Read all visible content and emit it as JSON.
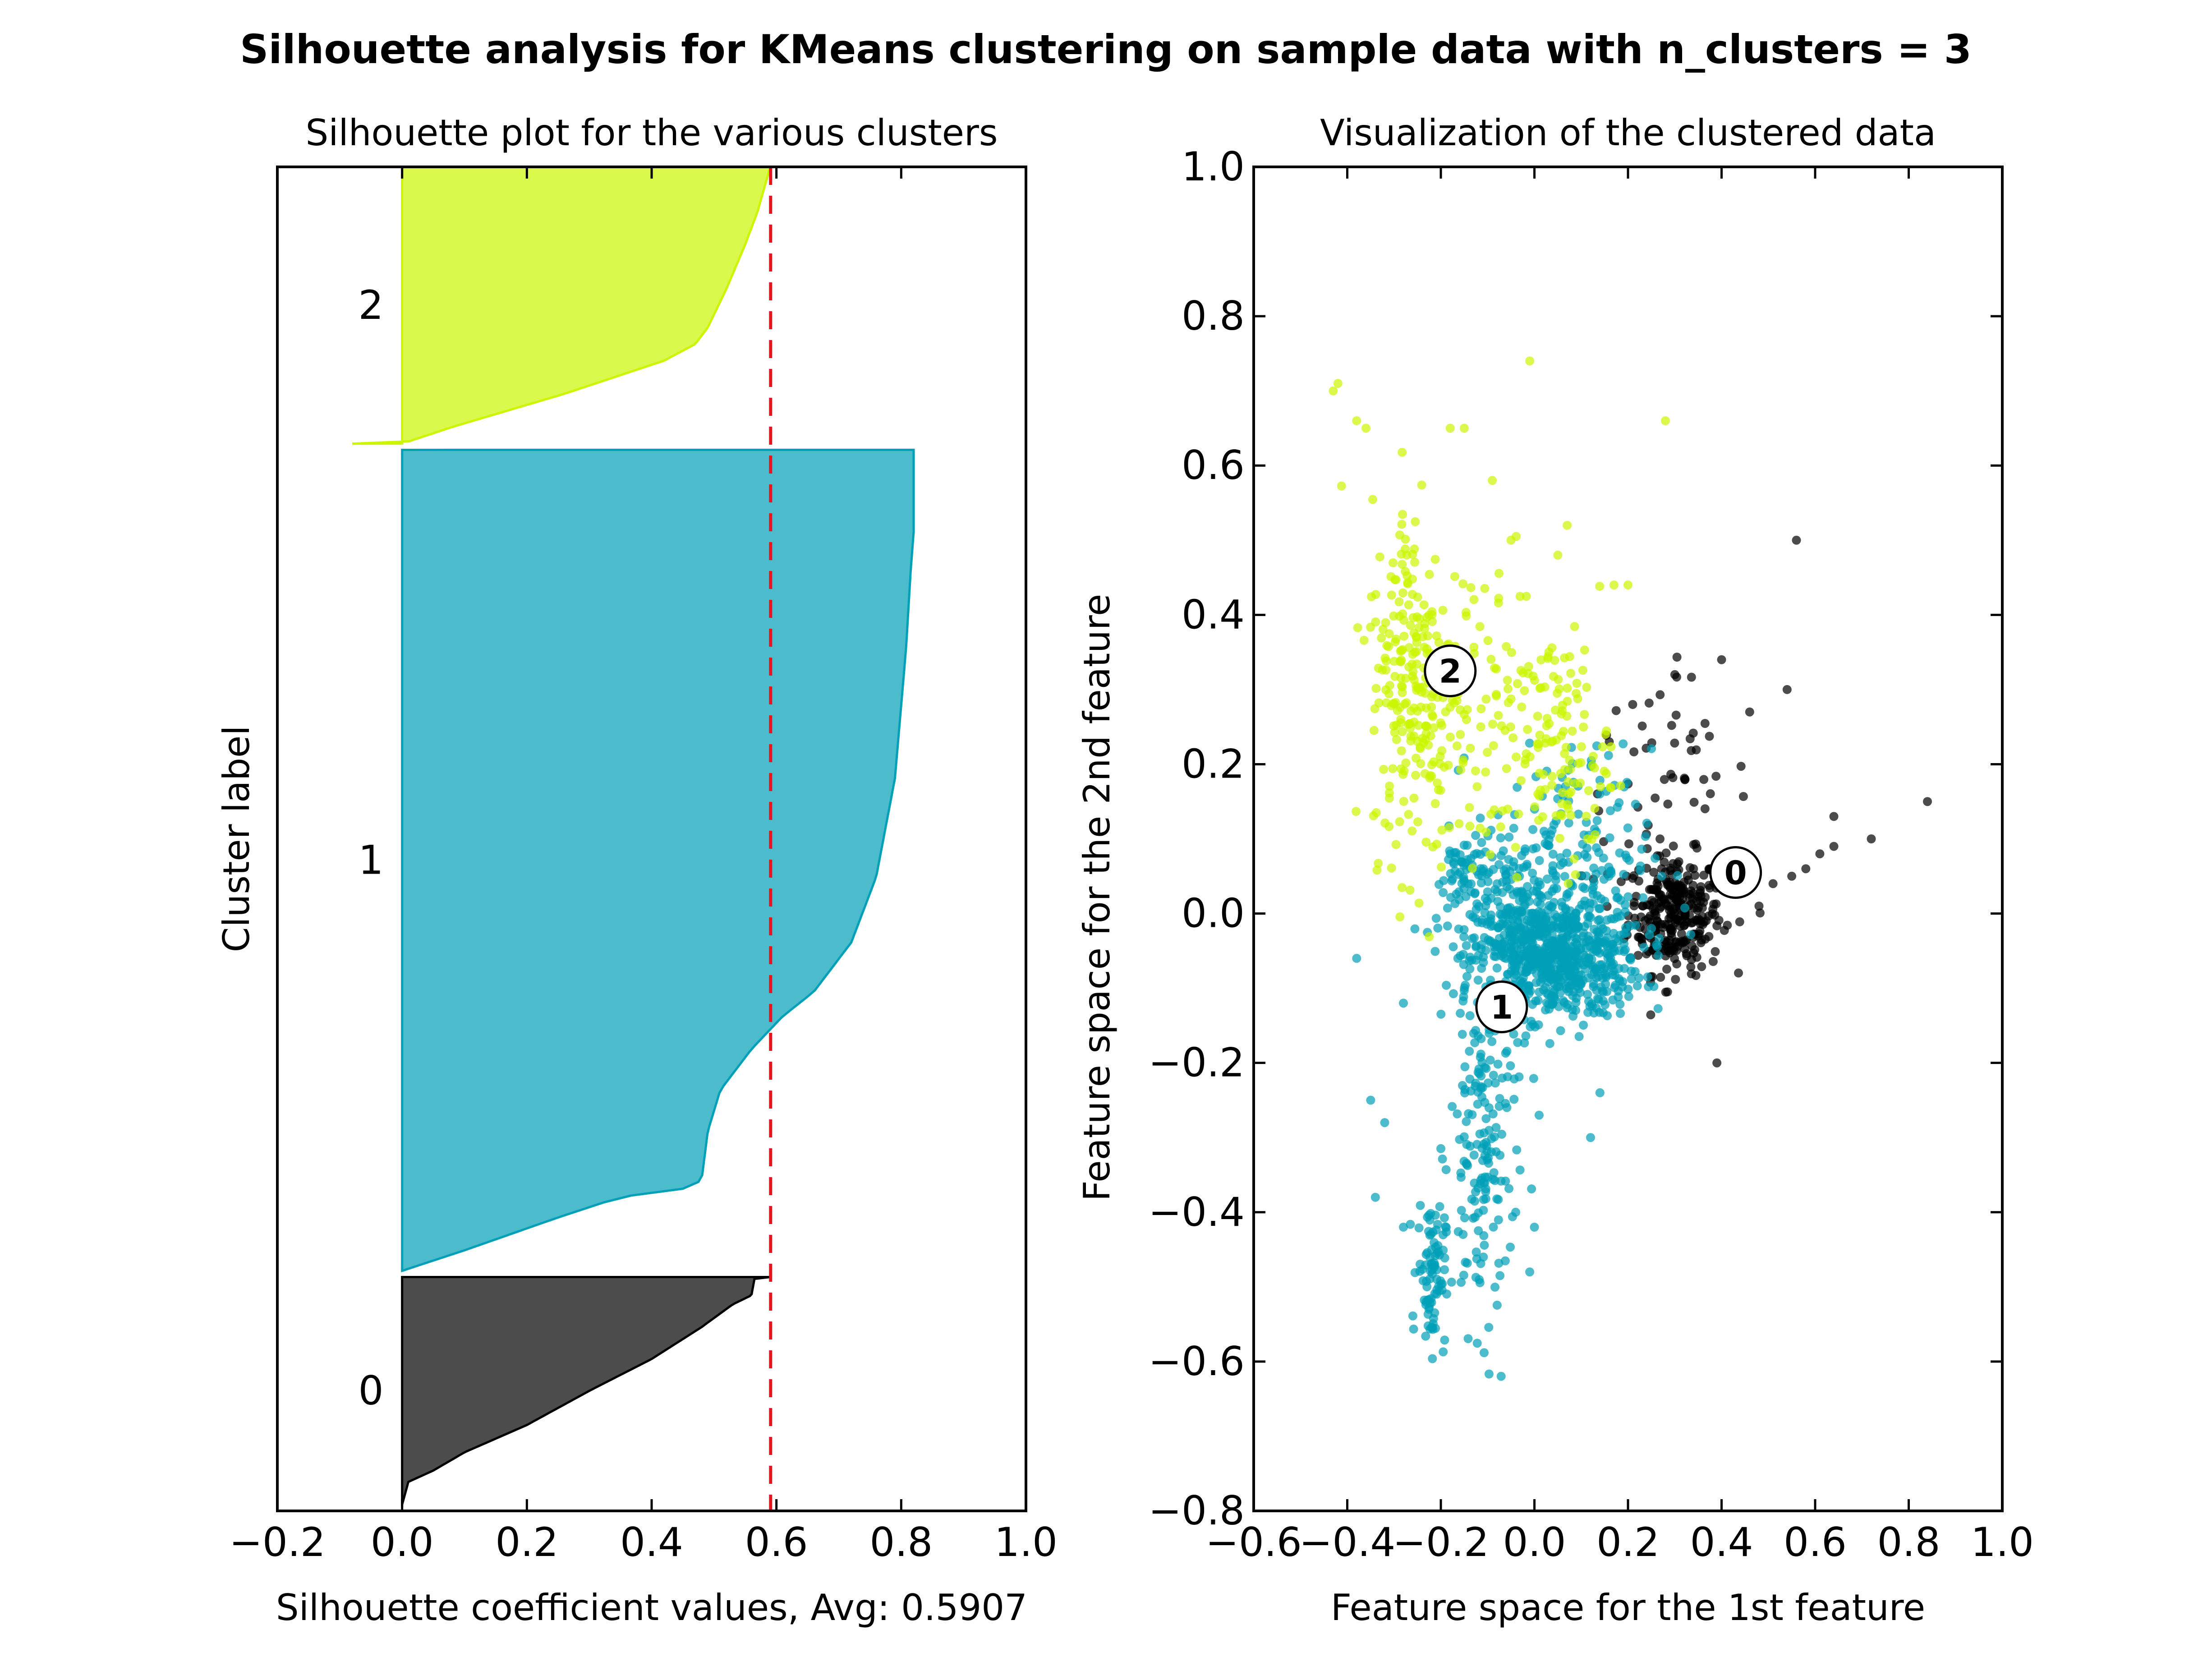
{
  "suptitle": "Silhouette analysis for KMeans clustering on sample data with n_clusters = 3",
  "colors": {
    "cluster_0": "#000000",
    "cluster_1": "#00a0b8",
    "cluster_2": "#ccf500",
    "avg_line": "#e8141c",
    "axes": "#000000"
  },
  "chart_data": [
    {
      "type": "area",
      "subtype": "silhouette",
      "title": "Silhouette plot for the various clusters",
      "xlabel": "Silhouette coefficient values, Avg: 0.5907",
      "ylabel": "Cluster label",
      "xlim": [
        -0.2,
        1.0
      ],
      "xticks": [
        "−0.2",
        "0.0",
        "0.2",
        "0.4",
        "0.6",
        "0.8",
        "1.0"
      ],
      "xtick_values": [
        -0.2,
        0.0,
        0.2,
        0.4,
        0.6,
        0.8,
        1.0
      ],
      "ylim": [
        0,
        2161
      ],
      "average_silhouette": 0.5907,
      "grid": false,
      "clusters": [
        {
          "label": "0",
          "color": "#000000",
          "y_start": 10,
          "size": 366,
          "profile": [
            [
              0.0,
              0.0
            ],
            [
              0.01,
              0.1
            ],
            [
              0.05,
              0.15
            ],
            [
              0.1,
              0.23
            ],
            [
              0.2,
              0.35
            ],
            [
              0.3,
              0.5
            ],
            [
              0.4,
              0.64
            ],
            [
              0.48,
              0.78
            ],
            [
              0.53,
              0.88
            ],
            [
              0.56,
              0.92
            ],
            [
              0.565,
              0.995
            ],
            [
              0.59,
              1.0
            ]
          ],
          "max_value": 0.595
        },
        {
          "label": "1",
          "color": "#00a0b8",
          "y_start": 386,
          "size": 1320,
          "profile": [
            [
              0.0,
              0.0
            ],
            [
              0.1,
              0.025
            ],
            [
              0.25,
              0.065
            ],
            [
              0.35,
              0.09
            ],
            [
              0.45,
              0.1
            ],
            [
              0.48,
              0.11
            ],
            [
              0.49,
              0.17
            ],
            [
              0.51,
              0.22
            ],
            [
              0.56,
              0.27
            ],
            [
              0.61,
              0.31
            ],
            [
              0.66,
              0.34
            ],
            [
              0.72,
              0.4
            ],
            [
              0.76,
              0.48
            ],
            [
              0.79,
              0.6
            ],
            [
              0.808,
              0.76
            ],
            [
              0.815,
              0.85
            ],
            [
              0.82,
              0.9
            ],
            [
              0.82,
              1.0
            ]
          ],
          "max_value": 0.82
        },
        {
          "label": "2",
          "color": "#ccf500",
          "y_start": 1716,
          "size": 445,
          "profile": [
            [
              0.0,
              0.0
            ],
            [
              0.08,
              0.06
            ],
            [
              0.17,
              0.12
            ],
            [
              0.26,
              0.18
            ],
            [
              0.34,
              0.24
            ],
            [
              0.42,
              0.3
            ],
            [
              0.47,
              0.36
            ],
            [
              0.49,
              0.42
            ],
            [
              0.52,
              0.56
            ],
            [
              0.55,
              0.72
            ],
            [
              0.57,
              0.84
            ],
            [
              0.59,
              1.0
            ]
          ],
          "min_value": -0.08,
          "max_value": 0.595
        }
      ]
    },
    {
      "type": "scatter",
      "title": "Visualization of the clustered data",
      "xlabel": "Feature space for the 1st feature",
      "ylabel": "Feature space for the 2nd feature",
      "xlim": [
        -0.6,
        1.0
      ],
      "ylim": [
        -0.8,
        1.0
      ],
      "xticks": [
        "−0.6",
        "−0.4",
        "−0.2",
        "0.0",
        "0.2",
        "0.4",
        "0.6",
        "0.8",
        "1.0"
      ],
      "xtick_values": [
        -0.6,
        -0.4,
        -0.2,
        0.0,
        0.2,
        0.4,
        0.6,
        0.8,
        1.0
      ],
      "yticks": [
        "−0.8",
        "−0.6",
        "−0.4",
        "−0.2",
        "0.0",
        "0.2",
        "0.4",
        "0.6",
        "0.8",
        "1.0"
      ],
      "ytick_values": [
        -0.8,
        -0.6,
        -0.4,
        -0.2,
        0.0,
        0.2,
        0.4,
        0.6,
        0.8,
        1.0
      ],
      "grid": false,
      "centers": [
        {
          "label": "0",
          "x": 0.43,
          "y": 0.055
        },
        {
          "label": "1",
          "x": -0.07,
          "y": -0.125
        },
        {
          "label": "2",
          "x": -0.18,
          "y": 0.325
        }
      ],
      "clusters": [
        {
          "label": "0",
          "color": "#000000",
          "count": 366,
          "distribution": [
            {
              "center": [
                0.3,
                0.0
              ],
              "spread": [
                0.05,
                0.04
              ],
              "n": 300
            },
            {
              "center": [
                0.28,
                0.18
              ],
              "spread": [
                0.09,
                0.07
              ],
              "n": 48
            }
          ],
          "points": [
            [
              0.56,
              0.5
            ],
            [
              0.84,
              0.15
            ],
            [
              0.39,
              -0.2
            ],
            [
              0.64,
              0.09
            ],
            [
              0.64,
              0.13
            ],
            [
              0.72,
              0.1
            ],
            [
              0.54,
              0.3
            ],
            [
              0.61,
              0.08
            ],
            [
              0.58,
              0.06
            ],
            [
              0.4,
              0.34
            ],
            [
              0.3,
              0.32
            ],
            [
              0.21,
              0.28
            ],
            [
              0.46,
              0.27
            ],
            [
              0.34,
              0.06
            ],
            [
              0.16,
              0.23
            ],
            [
              0.48,
              0.01
            ],
            [
              0.51,
              0.04
            ],
            [
              0.55,
              0.05
            ]
          ]
        },
        {
          "label": "1",
          "color": "#00a0b8",
          "count": 1320,
          "distribution": [
            {
              "center": [
                0.05,
                -0.06
              ],
              "spread": [
                0.09,
                0.04
              ],
              "n": 620
            },
            {
              "center": [
                -0.03,
                -0.03
              ],
              "spread": [
                0.06,
                0.06
              ],
              "n": 220
            },
            {
              "center": [
                -0.15,
                0.05
              ],
              "spread": [
                0.03,
                0.03
              ],
              "n": 60
            },
            {
              "center": [
                -0.11,
                -0.32
              ],
              "spread": [
                0.035,
                0.12
              ],
              "n": 170
            },
            {
              "center": [
                -0.22,
                -0.48
              ],
              "spread": [
                0.015,
                0.05
              ],
              "n": 90
            },
            {
              "center": [
                0.07,
                0.08
              ],
              "spread": [
                0.09,
                0.07
              ],
              "n": 160
            }
          ],
          "points": [
            [
              -0.38,
              -0.06
            ],
            [
              -0.28,
              -0.12
            ],
            [
              -0.32,
              -0.28
            ],
            [
              -0.34,
              -0.38
            ],
            [
              -0.35,
              -0.25
            ],
            [
              -0.28,
              -0.42
            ],
            [
              0.14,
              -0.24
            ],
            [
              0.12,
              -0.3
            ],
            [
              0.01,
              -0.27
            ],
            [
              -0.04,
              -0.4
            ],
            [
              -0.01,
              -0.48
            ],
            [
              0.0,
              -0.42
            ]
          ]
        },
        {
          "label": "2",
          "color": "#ccf500",
          "count": 445,
          "distribution": [
            {
              "center": [
                -0.26,
                0.32
              ],
              "spread": [
                0.045,
                0.12
              ],
              "n": 220
            },
            {
              "center": [
                -0.13,
                0.27
              ],
              "spread": [
                0.09,
                0.1
              ],
              "n": 120
            },
            {
              "center": [
                0.06,
                0.22
              ],
              "spread": [
                0.05,
                0.08
              ],
              "n": 105
            }
          ],
          "points": [
            [
              -0.43,
              0.7
            ],
            [
              -0.42,
              0.71
            ],
            [
              -0.38,
              0.66
            ],
            [
              -0.36,
              0.65
            ],
            [
              -0.01,
              0.74
            ],
            [
              0.28,
              0.66
            ],
            [
              -0.15,
              0.65
            ],
            [
              -0.18,
              0.65
            ],
            [
              0.17,
              0.44
            ],
            [
              0.2,
              0.44
            ],
            [
              0.07,
              0.52
            ],
            [
              -0.09,
              0.58
            ],
            [
              -0.05,
              0.5
            ],
            [
              0.05,
              0.48
            ]
          ]
        }
      ]
    }
  ]
}
